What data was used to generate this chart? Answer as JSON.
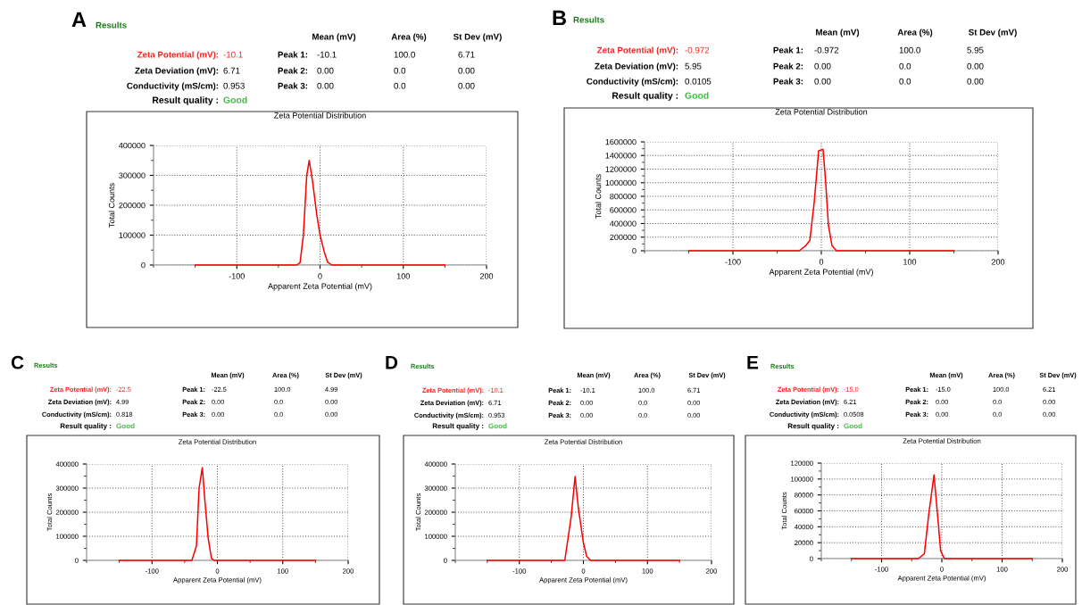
{
  "chart_data": [
    {
      "type": "other",
      "annotations": [
        "A",
        "Results",
        "Mean (mV)",
        "Area (%)",
        "St Dev (mV)",
        "Zeta Potential (mV):",
        "-10.1",
        "Peak 1:",
        "-10.1",
        "100.0",
        "6.71",
        "Zeta Deviation (mV):",
        "6.71",
        "Peak 2:",
        "0.00",
        "0.0",
        "0.00",
        "Conductivity (mS/cm):",
        "0.953",
        "Peak 3:",
        "0.00",
        "0.0",
        "0.00",
        "Result quality :",
        "Good"
      ]
    },
    {
      "type": "line",
      "title": "Zeta Potential Distribution",
      "xlabel": "Apparent Zeta Potential (mV)",
      "ylabel": "Total Counts",
      "grid": true,
      "xlim": [
        -200,
        200
      ],
      "xticks": [
        -100,
        0,
        100,
        200
      ],
      "ylim": [
        0,
        400000
      ],
      "yticks": [
        0,
        100000,
        200000,
        300000,
        400000
      ],
      "series": [
        {
          "color": "#ff0000",
          "x": [
            -150,
            -28,
            -24,
            -20,
            -16,
            -13,
            -9,
            -4,
            0,
            5,
            9,
            14,
            150
          ],
          "values": [
            0,
            0,
            8000,
            100000,
            300000,
            350000,
            280000,
            170000,
            100000,
            45000,
            10000,
            0,
            0
          ]
        }
      ]
    },
    {
      "type": "other",
      "annotations": [
        "B",
        "Results",
        "Mean (mV)",
        "Area (%)",
        "St Dev (mV)",
        "Zeta Potential (mV):",
        "-0.972",
        "Peak 1:",
        "-0.972",
        "100.0",
        "5.95",
        "Zeta Deviation (mV):",
        "5.95",
        "Peak 2:",
        "0.00",
        "0.0",
        "0.00",
        "Conductivity (mS/cm):",
        "0.0105",
        "Peak 3:",
        "0.00",
        "0.0",
        "0.00",
        "Result quality :",
        "Good"
      ]
    },
    {
      "type": "line",
      "title": "Zeta Potential Distribution",
      "xlabel": "Apparent Zeta Potential (mV)",
      "ylabel": "Total Counts",
      "grid": true,
      "xlim": [
        -200,
        200
      ],
      "xticks": [
        -100,
        0,
        100,
        200
      ],
      "ylim": [
        0,
        1600000
      ],
      "yticks": [
        0,
        200000,
        400000,
        600000,
        800000,
        1000000,
        1200000,
        1400000,
        1600000
      ],
      "series": [
        {
          "color": "#ff0000",
          "x": [
            -150,
            -25,
            -18,
            -13,
            -8,
            -3,
            2,
            5,
            8,
            12,
            17,
            150
          ],
          "values": [
            0,
            0,
            70000,
            150000,
            720000,
            1470000,
            1490000,
            990000,
            380000,
            80000,
            0,
            0
          ]
        }
      ]
    },
    {
      "type": "other",
      "annotations": [
        "C",
        "Results",
        "Mean (mV)",
        "Area (%)",
        "St Dev (mV)",
        "Zeta Potential (mV):",
        "-22.5",
        "Peak 1:",
        "-22.5",
        "100.0",
        "4.99",
        "Zeta Deviation (mV):",
        "4.99",
        "Peak 2:",
        "0.00",
        "0.0",
        "0.00",
        "Conductivity (mS/cm):",
        "0.818",
        "Peak 3:",
        "0.00",
        "0.0",
        "0.00",
        "Result quality :",
        "Good"
      ]
    },
    {
      "type": "line",
      "title": "Zeta Potential Distribution",
      "xlabel": "Apparent Zeta Potential (mV)",
      "ylabel": "Total Counts",
      "grid": true,
      "xlim": [
        -200,
        200
      ],
      "xticks": [
        -100,
        0,
        100,
        200
      ],
      "ylim": [
        0,
        400000
      ],
      "yticks": [
        0,
        100000,
        200000,
        300000,
        400000
      ],
      "series": [
        {
          "color": "#ff0000",
          "x": [
            -150,
            -39,
            -32,
            -28,
            -23,
            -19,
            -14,
            -9,
            -5,
            150
          ],
          "values": [
            0,
            0,
            60000,
            300000,
            385000,
            245000,
            90000,
            8000,
            0,
            0
          ]
        }
      ]
    },
    {
      "type": "other",
      "annotations": [
        "D",
        "Results",
        "Mean (mV)",
        "Area (%)",
        "St Dev (mV)",
        "Zeta Potential (mV):",
        "-10.1",
        "Peak 1:",
        "-10.1",
        "100.0",
        "6.71",
        "Zeta Deviation (mV):",
        "6.71",
        "Peak 2:",
        "0.00",
        "0.0",
        "0.00",
        "Conductivity (mS/cm):",
        "0.953",
        "Peak 3:",
        "0.00",
        "0.0",
        "0.00",
        "Result quality :",
        "Good"
      ]
    },
    {
      "type": "line",
      "title": "Zeta Potential Distribution",
      "xlabel": "Apparent Zeta Potential (mV)",
      "ylabel": "Total Counts",
      "grid": true,
      "xlim": [
        -200,
        200
      ],
      "xticks": [
        -100,
        0,
        100,
        200
      ],
      "ylim": [
        0,
        400000
      ],
      "yticks": [
        0,
        100000,
        200000,
        300000,
        400000
      ],
      "series": [
        {
          "color": "#ff0000",
          "x": [
            -150,
            -29,
            -19,
            -13,
            -8,
            0,
            5,
            11,
            150
          ],
          "values": [
            0,
            0,
            183000,
            348000,
            220000,
            73000,
            18000,
            0,
            0
          ]
        }
      ]
    },
    {
      "type": "other",
      "annotations": [
        "E",
        "Results",
        "Mean (mV)",
        "Area (%)",
        "St Dev (mV)",
        "Zeta Potential (mV):",
        "-15.0",
        "Peak 1:",
        "-15.0",
        "100.0",
        "6.21",
        "Zeta Deviation (mV):",
        "6.21",
        "Peak 2:",
        "0.00",
        "0.0",
        "0.00",
        "Conductivity (mS/cm):",
        "0.0508",
        "Peak 3:",
        "0.00",
        "0.0",
        "0.00",
        "Result quality :",
        "Good"
      ]
    },
    {
      "type": "line",
      "title": "Zeta Potential Distribution",
      "xlabel": "Apparent Zeta Potential (mV)",
      "ylabel": "Total Counts",
      "grid": true,
      "xlim": [
        -200,
        200
      ],
      "xticks": [
        -100,
        0,
        100,
        200
      ],
      "ylim": [
        0,
        120000
      ],
      "yticks": [
        0,
        20000,
        40000,
        60000,
        80000,
        100000,
        120000
      ],
      "series": [
        {
          "color": "#ff0000",
          "x": [
            -150,
            -39,
            -29,
            -22,
            -13,
            -7,
            -2,
            4,
            150
          ],
          "values": [
            0,
            0,
            6000,
            54000,
            105000,
            54000,
            10000,
            0,
            0
          ]
        }
      ]
    }
  ]
}
